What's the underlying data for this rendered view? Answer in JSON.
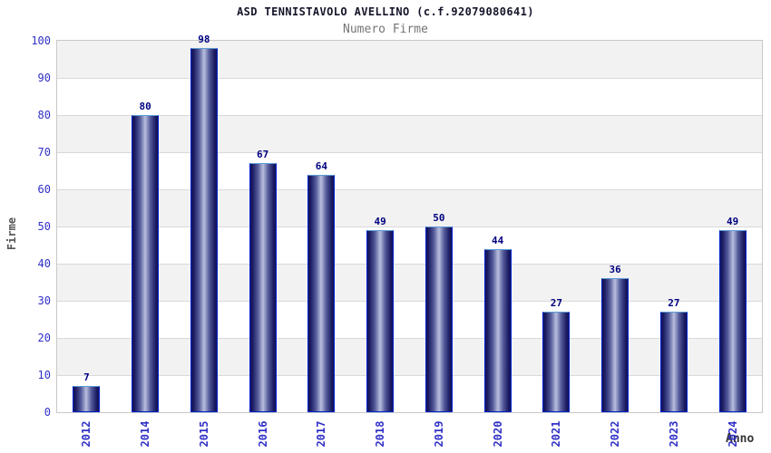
{
  "chart_data": {
    "type": "bar",
    "title": "ASD TENNISTAVOLO AVELLINO (c.f.92079080641)",
    "subtitle": "Numero Firme",
    "xlabel": "Anno",
    "ylabel": "Firme",
    "categories": [
      "2012",
      "2014",
      "2015",
      "2016",
      "2017",
      "2018",
      "2019",
      "2020",
      "2021",
      "2022",
      "2023",
      "2024"
    ],
    "values": [
      7,
      80,
      98,
      67,
      64,
      49,
      50,
      44,
      27,
      36,
      27,
      49
    ],
    "ylim": [
      0,
      100
    ],
    "ytick_step": 10,
    "yticks": [
      "0",
      "10",
      "20",
      "30",
      "40",
      "50",
      "60",
      "70",
      "80",
      "90",
      "100"
    ],
    "grid": "horizontal-bands",
    "legend": "none",
    "colors": {
      "title": "#15152a",
      "subtitle": "#757575",
      "axis_title_y": "#555555",
      "axis_title_x": "#333333",
      "tick_label": "#3030c8",
      "value_label": "#000080",
      "band_gray": "#f2f2f2",
      "gridline": "#d9d9d9",
      "plot_border": "#c8c8c8",
      "bar_border": "#0022cc",
      "bar_top_edge": "#5b9bd5",
      "bar_dark": "#17175e",
      "bar_mid": "#555c9b",
      "bar_light": "#b9bfdd"
    }
  }
}
